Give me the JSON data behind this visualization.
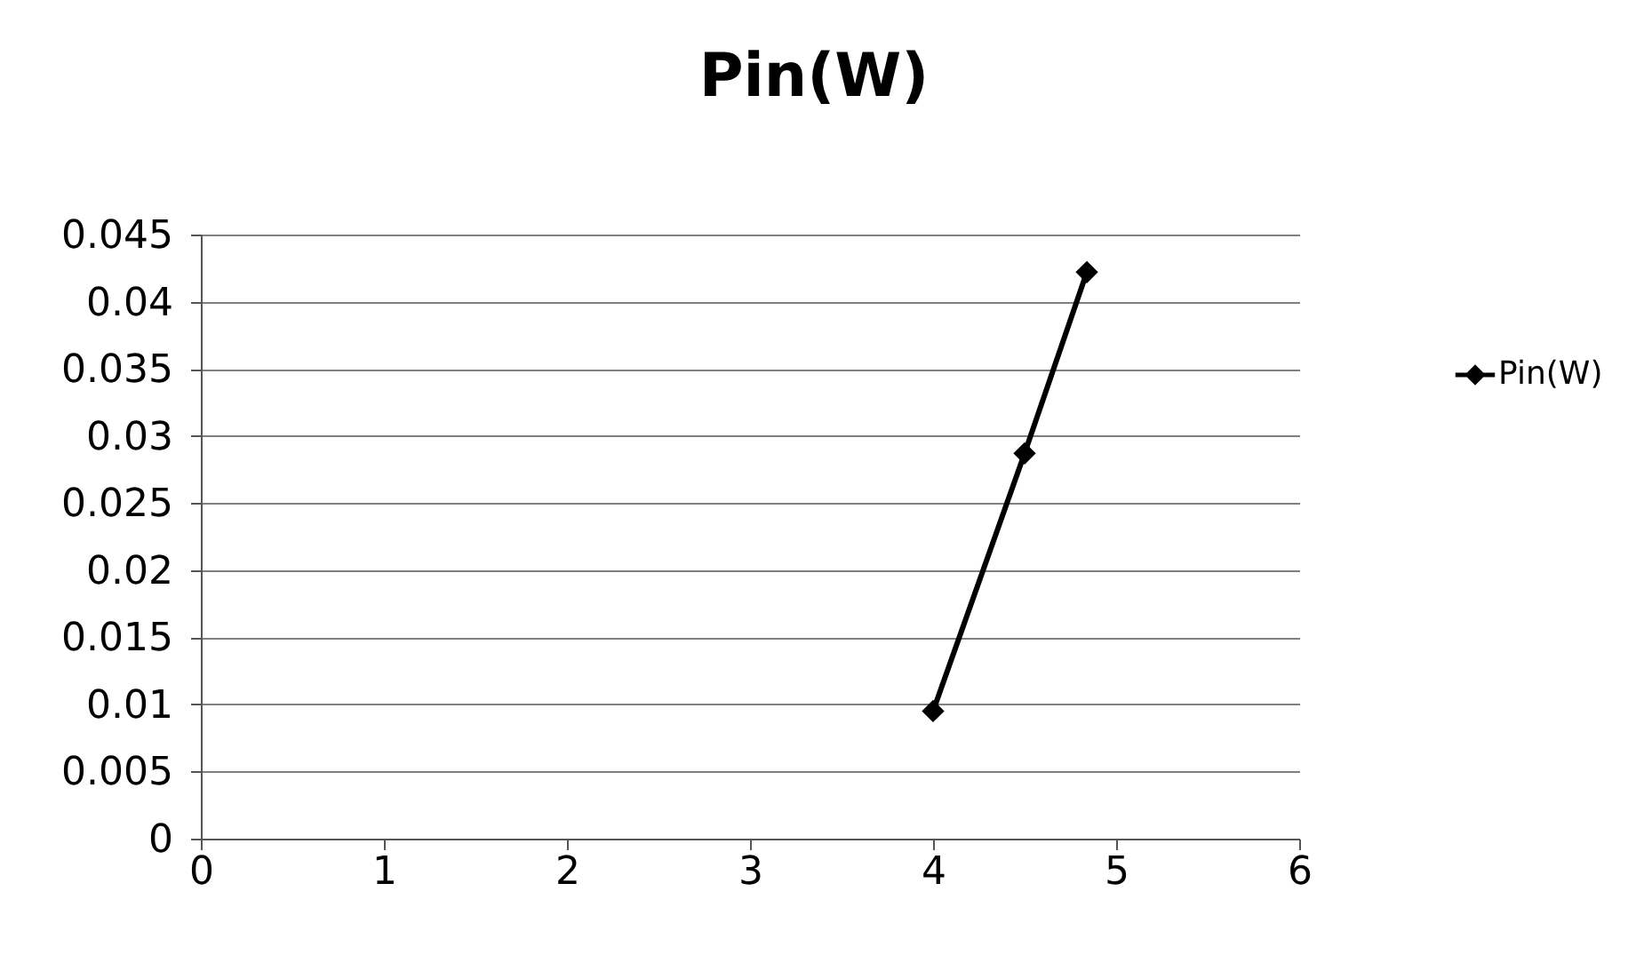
{
  "chart_data": {
    "type": "line",
    "title": "Pin(W)",
    "x": [
      4.0,
      4.5,
      4.84
    ],
    "series": [
      {
        "name": "Pin(W)",
        "color": "#000000",
        "values": [
          0.0095,
          0.0287,
          0.0422
        ]
      }
    ],
    "xlim": [
      0,
      6
    ],
    "xticks": [
      0,
      1,
      2,
      3,
      4,
      5,
      6
    ],
    "ylim": [
      0,
      0.045
    ],
    "yticks": [
      0,
      0.005,
      0.01,
      0.015,
      0.02,
      0.025,
      0.03,
      0.035,
      0.04,
      0.045
    ],
    "grid": "y",
    "legend": "right",
    "marker": "diamond",
    "line_style": "solid"
  }
}
